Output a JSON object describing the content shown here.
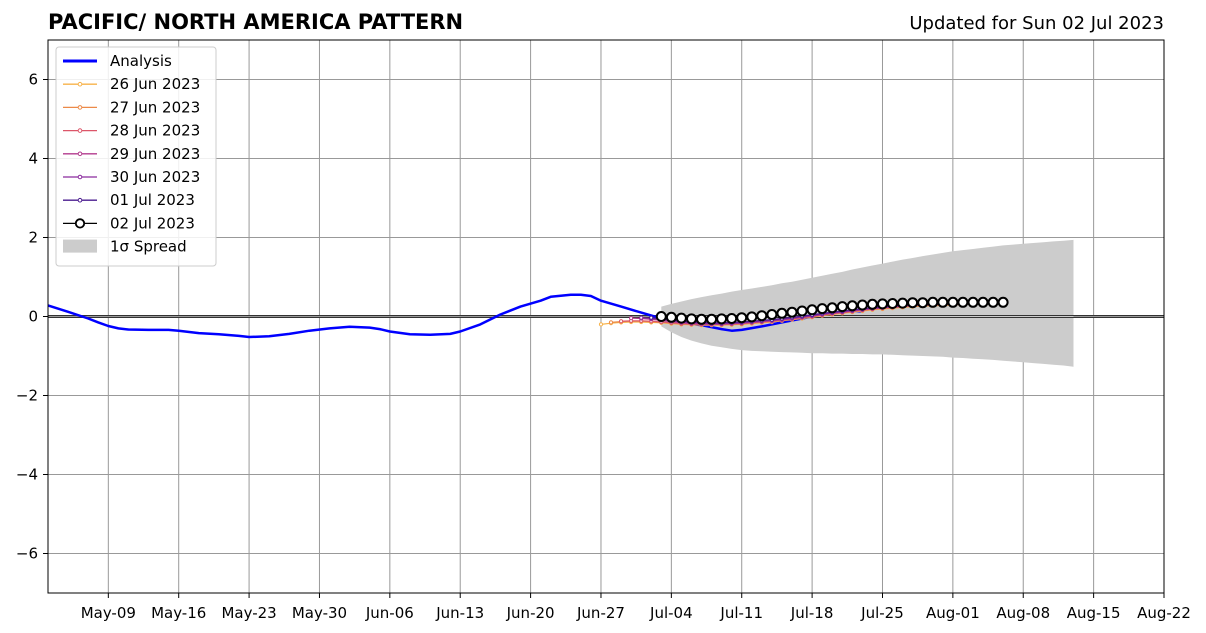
{
  "title": "PACIFIC/ NORTH AMERICA PATTERN",
  "subtitle": "Updated for Sun 02 Jul 2023",
  "chart_data": {
    "type": "line",
    "x_range": [
      "2023-05-03",
      "2023-08-22"
    ],
    "y_range": [
      -7,
      7
    ],
    "grid": true,
    "legend_position": "top-left",
    "x_ticks": [
      {
        "date": "2023-05-09",
        "label": "May-09"
      },
      {
        "date": "2023-05-16",
        "label": "May-16"
      },
      {
        "date": "2023-05-23",
        "label": "May-23"
      },
      {
        "date": "2023-05-30",
        "label": "May-30"
      },
      {
        "date": "2023-06-06",
        "label": "Jun-06"
      },
      {
        "date": "2023-06-13",
        "label": "Jun-13"
      },
      {
        "date": "2023-06-20",
        "label": "Jun-20"
      },
      {
        "date": "2023-06-27",
        "label": "Jun-27"
      },
      {
        "date": "2023-07-04",
        "label": "Jul-04"
      },
      {
        "date": "2023-07-11",
        "label": "Jul-11"
      },
      {
        "date": "2023-07-18",
        "label": "Jul-18"
      },
      {
        "date": "2023-07-25",
        "label": "Jul-25"
      },
      {
        "date": "2023-08-01",
        "label": "Aug-01"
      },
      {
        "date": "2023-08-08",
        "label": "Aug-08"
      },
      {
        "date": "2023-08-15",
        "label": "Aug-15"
      },
      {
        "date": "2023-08-22",
        "label": "Aug-22"
      }
    ],
    "y_ticks": [
      {
        "value": 6,
        "label": "6"
      },
      {
        "value": 4,
        "label": "4"
      },
      {
        "value": 2,
        "label": "2"
      },
      {
        "value": 0,
        "label": "0"
      },
      {
        "value": -2,
        "label": "−2"
      },
      {
        "value": -4,
        "label": "−4"
      },
      {
        "value": -6,
        "label": "−6"
      }
    ],
    "analysis": {
      "name": "Analysis",
      "color": "#0000ff",
      "points": [
        [
          "2023-05-03",
          0.28
        ],
        [
          "2023-05-05",
          0.12
        ],
        [
          "2023-05-07",
          -0.05
        ],
        [
          "2023-05-08",
          -0.15
        ],
        [
          "2023-05-09",
          -0.24
        ],
        [
          "2023-05-10",
          -0.3
        ],
        [
          "2023-05-11",
          -0.33
        ],
        [
          "2023-05-13",
          -0.34
        ],
        [
          "2023-05-15",
          -0.34
        ],
        [
          "2023-05-16",
          -0.36
        ],
        [
          "2023-05-18",
          -0.42
        ],
        [
          "2023-05-20",
          -0.45
        ],
        [
          "2023-05-22",
          -0.49
        ],
        [
          "2023-05-23",
          -0.52
        ],
        [
          "2023-05-25",
          -0.5
        ],
        [
          "2023-05-27",
          -0.44
        ],
        [
          "2023-05-29",
          -0.36
        ],
        [
          "2023-05-31",
          -0.3
        ],
        [
          "2023-06-02",
          -0.26
        ],
        [
          "2023-06-04",
          -0.28
        ],
        [
          "2023-06-05",
          -0.32
        ],
        [
          "2023-06-06",
          -0.38
        ],
        [
          "2023-06-08",
          -0.45
        ],
        [
          "2023-06-10",
          -0.46
        ],
        [
          "2023-06-12",
          -0.44
        ],
        [
          "2023-06-13",
          -0.38
        ],
        [
          "2023-06-15",
          -0.2
        ],
        [
          "2023-06-17",
          0.05
        ],
        [
          "2023-06-19",
          0.25
        ],
        [
          "2023-06-21",
          0.4
        ],
        [
          "2023-06-22",
          0.5
        ],
        [
          "2023-06-24",
          0.55
        ],
        [
          "2023-06-25",
          0.55
        ],
        [
          "2023-06-26",
          0.52
        ],
        [
          "2023-06-27",
          0.4
        ],
        [
          "2023-06-29",
          0.25
        ],
        [
          "2023-07-01",
          0.1
        ],
        [
          "2023-07-03",
          -0.05
        ],
        [
          "2023-07-05",
          -0.15
        ],
        [
          "2023-07-07",
          -0.22
        ],
        [
          "2023-07-09",
          -0.32
        ],
        [
          "2023-07-10",
          -0.36
        ],
        [
          "2023-07-11",
          -0.34
        ],
        [
          "2023-07-13",
          -0.25
        ],
        [
          "2023-07-15",
          -0.15
        ],
        [
          "2023-07-17",
          -0.05
        ],
        [
          "2023-07-19",
          0.05
        ],
        [
          "2023-07-21",
          0.12
        ],
        [
          "2023-07-22",
          0.14
        ],
        [
          "2023-07-23",
          0.13
        ]
      ]
    },
    "forecasts": [
      {
        "name": "26 Jun 2023",
        "color": "#f7b24a",
        "start": "2023-06-27",
        "values": [
          -0.2,
          -0.17,
          -0.15,
          -0.14,
          -0.14,
          -0.15,
          -0.16,
          -0.18,
          -0.2,
          -0.21,
          -0.22,
          -0.22,
          -0.22,
          -0.21,
          -0.2,
          -0.18,
          -0.16,
          -0.14,
          -0.11,
          -0.08,
          -0.05,
          -0.02,
          0.02,
          0.05,
          0.08,
          0.11,
          0.14,
          0.17,
          0.19,
          0.21,
          0.23,
          0.25,
          0.26,
          0.27,
          0.28,
          0.29
        ]
      },
      {
        "name": "27 Jun 2023",
        "color": "#ec8a49",
        "start": "2023-06-28",
        "values": [
          -0.15,
          -0.13,
          -0.12,
          -0.12,
          -0.13,
          -0.15,
          -0.17,
          -0.19,
          -0.2,
          -0.21,
          -0.21,
          -0.21,
          -0.2,
          -0.19,
          -0.17,
          -0.15,
          -0.13,
          -0.1,
          -0.07,
          -0.04,
          -0.01,
          0.03,
          0.06,
          0.09,
          0.12,
          0.15,
          0.18,
          0.2,
          0.22,
          0.24,
          0.26,
          0.27,
          0.28,
          0.29,
          0.3,
          0.3
        ]
      },
      {
        "name": "28 Jun 2023",
        "color": "#dc5669",
        "start": "2023-06-29",
        "values": [
          -0.12,
          -0.11,
          -0.11,
          -0.12,
          -0.14,
          -0.16,
          -0.18,
          -0.19,
          -0.2,
          -0.2,
          -0.2,
          -0.19,
          -0.18,
          -0.16,
          -0.14,
          -0.12,
          -0.09,
          -0.06,
          -0.03,
          0.0,
          0.04,
          0.07,
          0.1,
          0.13,
          0.16,
          0.19,
          0.21,
          0.23,
          0.25,
          0.27,
          0.28,
          0.29,
          0.3,
          0.31,
          0.31,
          0.32
        ]
      },
      {
        "name": "29 Jun 2023",
        "color": "#b23a8d",
        "start": "2023-06-30",
        "values": [
          -0.04,
          -0.05,
          -0.07,
          -0.1,
          -0.13,
          -0.16,
          -0.18,
          -0.19,
          -0.19,
          -0.19,
          -0.18,
          -0.17,
          -0.15,
          -0.13,
          -0.11,
          -0.08,
          -0.05,
          -0.02,
          0.01,
          0.05,
          0.08,
          0.11,
          0.14,
          0.17,
          0.2,
          0.22,
          0.24,
          0.26,
          0.28,
          0.29,
          0.3,
          0.31,
          0.32,
          0.33,
          0.33,
          0.34
        ]
      },
      {
        "name": "30 Jun 2023",
        "color": "#8a2a9e",
        "start": "2023-07-01",
        "values": [
          -0.03,
          -0.05,
          -0.08,
          -0.11,
          -0.14,
          -0.16,
          -0.17,
          -0.18,
          -0.18,
          -0.17,
          -0.16,
          -0.14,
          -0.12,
          -0.1,
          -0.07,
          -0.04,
          -0.01,
          0.02,
          0.06,
          0.09,
          0.12,
          0.15,
          0.18,
          0.21,
          0.23,
          0.25,
          0.27,
          0.29,
          0.3,
          0.31,
          0.32,
          0.33,
          0.34,
          0.34,
          0.35,
          0.35
        ]
      },
      {
        "name": "01 Jul 2023",
        "color": "#4a1b8f",
        "start": "2023-07-02",
        "values": [
          -0.03,
          -0.06,
          -0.09,
          -0.12,
          -0.14,
          -0.15,
          -0.16,
          -0.16,
          -0.15,
          -0.14,
          -0.12,
          -0.1,
          -0.08,
          -0.05,
          -0.02,
          0.01,
          0.04,
          0.08,
          0.11,
          0.14,
          0.17,
          0.2,
          0.22,
          0.25,
          0.27,
          0.29,
          0.3,
          0.32,
          0.33,
          0.34,
          0.34,
          0.35,
          0.35,
          0.36,
          0.36,
          0.36
        ]
      },
      {
        "name": "02 Jul 2023",
        "color": "#000000",
        "marker": "open-circle",
        "start": "2023-07-03",
        "values": [
          0.0,
          -0.02,
          -0.04,
          -0.06,
          -0.07,
          -0.07,
          -0.06,
          -0.05,
          -0.03,
          -0.01,
          0.02,
          0.05,
          0.08,
          0.11,
          0.14,
          0.17,
          0.2,
          0.22,
          0.25,
          0.27,
          0.29,
          0.31,
          0.32,
          0.33,
          0.34,
          0.35,
          0.35,
          0.36,
          0.36,
          0.36,
          0.36,
          0.36,
          0.36,
          0.36,
          0.36
        ]
      }
    ],
    "spread": {
      "name": "1σ Spread",
      "color": "#cccccc",
      "start": "2023-07-03",
      "upper": [
        0.25,
        0.32,
        0.38,
        0.44,
        0.49,
        0.54,
        0.58,
        0.63,
        0.67,
        0.71,
        0.75,
        0.79,
        0.84,
        0.88,
        0.93,
        0.98,
        1.03,
        1.08,
        1.13,
        1.19,
        1.24,
        1.29,
        1.34,
        1.39,
        1.44,
        1.48,
        1.53,
        1.57,
        1.61,
        1.65,
        1.68,
        1.71,
        1.74,
        1.77,
        1.8,
        1.82,
        1.84,
        1.86,
        1.88,
        1.9,
        1.92,
        1.94
      ],
      "lower": [
        -0.25,
        -0.4,
        -0.52,
        -0.61,
        -0.68,
        -0.74,
        -0.78,
        -0.82,
        -0.85,
        -0.87,
        -0.88,
        -0.89,
        -0.9,
        -0.91,
        -0.92,
        -0.93,
        -0.93,
        -0.94,
        -0.94,
        -0.95,
        -0.95,
        -0.96,
        -0.96,
        -0.97,
        -0.98,
        -0.99,
        -1.0,
        -1.01,
        -1.02,
        -1.04,
        -1.05,
        -1.07,
        -1.08,
        -1.1,
        -1.12,
        -1.14,
        -1.16,
        -1.18,
        -1.2,
        -1.22,
        -1.24,
        -1.27
      ]
    }
  }
}
